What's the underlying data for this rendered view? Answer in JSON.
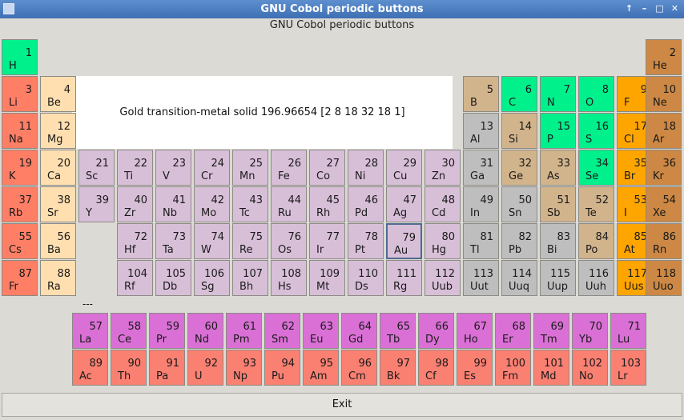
{
  "window": {
    "title": "GNU Cobol periodic buttons"
  },
  "header": {
    "subtitle": "GNU Cobol periodic buttons"
  },
  "info": {
    "text": "Gold transition-metal solid 196.96654 [2 8 18 32 18 1]"
  },
  "separator": {
    "text": "---"
  },
  "footer": {
    "exit_label": "Exit"
  },
  "colors": {
    "nonmetal": "#00f08c",
    "noble": "#cc8844",
    "alkali": "#ff7f66",
    "alkaline": "#ffdfb0",
    "metalloid": "#d2b48c",
    "poor": "#bebebe",
    "halogen": "#ffa500",
    "transition": "#d8bfd8",
    "lanthanide": "#da70d6",
    "actinide": "#fa8072"
  },
  "selected": "79",
  "elements": [
    {
      "num": "1",
      "sym": "H",
      "cat": "nonmetal"
    },
    {
      "num": "2",
      "sym": "He",
      "cat": "noble"
    },
    {
      "num": "3",
      "sym": "Li",
      "cat": "alkali"
    },
    {
      "num": "4",
      "sym": "Be",
      "cat": "alkaline"
    },
    {
      "num": "5",
      "sym": "B",
      "cat": "metalloid"
    },
    {
      "num": "6",
      "sym": "C",
      "cat": "nonmetal"
    },
    {
      "num": "7",
      "sym": "N",
      "cat": "nonmetal"
    },
    {
      "num": "8",
      "sym": "O",
      "cat": "nonmetal"
    },
    {
      "num": "9",
      "sym": "F",
      "cat": "halogen"
    },
    {
      "num": "10",
      "sym": "Ne",
      "cat": "noble"
    },
    {
      "num": "11",
      "sym": "Na",
      "cat": "alkali"
    },
    {
      "num": "12",
      "sym": "Mg",
      "cat": "alkaline"
    },
    {
      "num": "13",
      "sym": "Al",
      "cat": "poor"
    },
    {
      "num": "14",
      "sym": "Si",
      "cat": "metalloid"
    },
    {
      "num": "15",
      "sym": "P",
      "cat": "nonmetal"
    },
    {
      "num": "16",
      "sym": "S",
      "cat": "nonmetal"
    },
    {
      "num": "17",
      "sym": "Cl",
      "cat": "halogen"
    },
    {
      "num": "18",
      "sym": "Ar",
      "cat": "noble"
    },
    {
      "num": "19",
      "sym": "K",
      "cat": "alkali"
    },
    {
      "num": "20",
      "sym": "Ca",
      "cat": "alkaline"
    },
    {
      "num": "21",
      "sym": "Sc",
      "cat": "transition"
    },
    {
      "num": "22",
      "sym": "Ti",
      "cat": "transition"
    },
    {
      "num": "23",
      "sym": "V",
      "cat": "transition"
    },
    {
      "num": "24",
      "sym": "Cr",
      "cat": "transition"
    },
    {
      "num": "25",
      "sym": "Mn",
      "cat": "transition"
    },
    {
      "num": "26",
      "sym": "Fe",
      "cat": "transition"
    },
    {
      "num": "27",
      "sym": "Co",
      "cat": "transition"
    },
    {
      "num": "28",
      "sym": "Ni",
      "cat": "transition"
    },
    {
      "num": "29",
      "sym": "Cu",
      "cat": "transition"
    },
    {
      "num": "30",
      "sym": "Zn",
      "cat": "transition"
    },
    {
      "num": "31",
      "sym": "Ga",
      "cat": "poor"
    },
    {
      "num": "32",
      "sym": "Ge",
      "cat": "metalloid"
    },
    {
      "num": "33",
      "sym": "As",
      "cat": "metalloid"
    },
    {
      "num": "34",
      "sym": "Se",
      "cat": "nonmetal"
    },
    {
      "num": "35",
      "sym": "Br",
      "cat": "halogen"
    },
    {
      "num": "36",
      "sym": "Kr",
      "cat": "noble"
    },
    {
      "num": "37",
      "sym": "Rb",
      "cat": "alkali"
    },
    {
      "num": "38",
      "sym": "Sr",
      "cat": "alkaline"
    },
    {
      "num": "39",
      "sym": "Y",
      "cat": "transition"
    },
    {
      "num": "40",
      "sym": "Zr",
      "cat": "transition"
    },
    {
      "num": "41",
      "sym": "Nb",
      "cat": "transition"
    },
    {
      "num": "42",
      "sym": "Mo",
      "cat": "transition"
    },
    {
      "num": "43",
      "sym": "Tc",
      "cat": "transition"
    },
    {
      "num": "44",
      "sym": "Ru",
      "cat": "transition"
    },
    {
      "num": "45",
      "sym": "Rh",
      "cat": "transition"
    },
    {
      "num": "46",
      "sym": "Pd",
      "cat": "transition"
    },
    {
      "num": "47",
      "sym": "Ag",
      "cat": "transition"
    },
    {
      "num": "48",
      "sym": "Cd",
      "cat": "transition"
    },
    {
      "num": "49",
      "sym": "In",
      "cat": "poor"
    },
    {
      "num": "50",
      "sym": "Sn",
      "cat": "poor"
    },
    {
      "num": "51",
      "sym": "Sb",
      "cat": "metalloid"
    },
    {
      "num": "52",
      "sym": "Te",
      "cat": "metalloid"
    },
    {
      "num": "53",
      "sym": "I",
      "cat": "halogen"
    },
    {
      "num": "54",
      "sym": "Xe",
      "cat": "noble"
    },
    {
      "num": "55",
      "sym": "Cs",
      "cat": "alkali"
    },
    {
      "num": "56",
      "sym": "Ba",
      "cat": "alkaline"
    },
    {
      "num": "72",
      "sym": "Hf",
      "cat": "transition"
    },
    {
      "num": "73",
      "sym": "Ta",
      "cat": "transition"
    },
    {
      "num": "74",
      "sym": "W",
      "cat": "transition"
    },
    {
      "num": "75",
      "sym": "Re",
      "cat": "transition"
    },
    {
      "num": "76",
      "sym": "Os",
      "cat": "transition"
    },
    {
      "num": "77",
      "sym": "Ir",
      "cat": "transition"
    },
    {
      "num": "78",
      "sym": "Pt",
      "cat": "transition"
    },
    {
      "num": "79",
      "sym": "Au",
      "cat": "transition"
    },
    {
      "num": "80",
      "sym": "Hg",
      "cat": "transition"
    },
    {
      "num": "81",
      "sym": "Tl",
      "cat": "poor"
    },
    {
      "num": "82",
      "sym": "Pb",
      "cat": "poor"
    },
    {
      "num": "83",
      "sym": "Bi",
      "cat": "poor"
    },
    {
      "num": "84",
      "sym": "Po",
      "cat": "metalloid"
    },
    {
      "num": "85",
      "sym": "At",
      "cat": "halogen"
    },
    {
      "num": "86",
      "sym": "Rn",
      "cat": "noble"
    },
    {
      "num": "87",
      "sym": "Fr",
      "cat": "alkali"
    },
    {
      "num": "88",
      "sym": "Ra",
      "cat": "alkaline"
    },
    {
      "num": "104",
      "sym": "Rf",
      "cat": "transition"
    },
    {
      "num": "105",
      "sym": "Db",
      "cat": "transition"
    },
    {
      "num": "106",
      "sym": "Sg",
      "cat": "transition"
    },
    {
      "num": "107",
      "sym": "Bh",
      "cat": "transition"
    },
    {
      "num": "108",
      "sym": "Hs",
      "cat": "transition"
    },
    {
      "num": "109",
      "sym": "Mt",
      "cat": "transition"
    },
    {
      "num": "110",
      "sym": "Ds",
      "cat": "transition"
    },
    {
      "num": "111",
      "sym": "Rg",
      "cat": "transition"
    },
    {
      "num": "112",
      "sym": "Uub",
      "cat": "transition"
    },
    {
      "num": "113",
      "sym": "Uut",
      "cat": "poor"
    },
    {
      "num": "114",
      "sym": "Uuq",
      "cat": "poor"
    },
    {
      "num": "115",
      "sym": "Uup",
      "cat": "poor"
    },
    {
      "num": "116",
      "sym": "Uuh",
      "cat": "poor"
    },
    {
      "num": "117",
      "sym": "Uus",
      "cat": "halogen"
    },
    {
      "num": "118",
      "sym": "Uuo",
      "cat": "noble"
    },
    {
      "num": "57",
      "sym": "La",
      "cat": "lanthanide"
    },
    {
      "num": "58",
      "sym": "Ce",
      "cat": "lanthanide"
    },
    {
      "num": "59",
      "sym": "Pr",
      "cat": "lanthanide"
    },
    {
      "num": "60",
      "sym": "Nd",
      "cat": "lanthanide"
    },
    {
      "num": "61",
      "sym": "Pm",
      "cat": "lanthanide"
    },
    {
      "num": "62",
      "sym": "Sm",
      "cat": "lanthanide"
    },
    {
      "num": "63",
      "sym": "Eu",
      "cat": "lanthanide"
    },
    {
      "num": "64",
      "sym": "Gd",
      "cat": "lanthanide"
    },
    {
      "num": "65",
      "sym": "Tb",
      "cat": "lanthanide"
    },
    {
      "num": "66",
      "sym": "Dy",
      "cat": "lanthanide"
    },
    {
      "num": "67",
      "sym": "Ho",
      "cat": "lanthanide"
    },
    {
      "num": "68",
      "sym": "Er",
      "cat": "lanthanide"
    },
    {
      "num": "69",
      "sym": "Tm",
      "cat": "lanthanide"
    },
    {
      "num": "70",
      "sym": "Yb",
      "cat": "lanthanide"
    },
    {
      "num": "71",
      "sym": "Lu",
      "cat": "lanthanide"
    },
    {
      "num": "89",
      "sym": "Ac",
      "cat": "actinide"
    },
    {
      "num": "90",
      "sym": "Th",
      "cat": "actinide"
    },
    {
      "num": "91",
      "sym": "Pa",
      "cat": "actinide"
    },
    {
      "num": "92",
      "sym": "U",
      "cat": "actinide"
    },
    {
      "num": "93",
      "sym": "Np",
      "cat": "actinide"
    },
    {
      "num": "94",
      "sym": "Pu",
      "cat": "actinide"
    },
    {
      "num": "95",
      "sym": "Am",
      "cat": "actinide"
    },
    {
      "num": "96",
      "sym": "Cm",
      "cat": "actinide"
    },
    {
      "num": "97",
      "sym": "Bk",
      "cat": "actinide"
    },
    {
      "num": "98",
      "sym": "Cf",
      "cat": "actinide"
    },
    {
      "num": "99",
      "sym": "Es",
      "cat": "actinide"
    },
    {
      "num": "100",
      "sym": "Fm",
      "cat": "actinide"
    },
    {
      "num": "101",
      "sym": "Md",
      "cat": "actinide"
    },
    {
      "num": "102",
      "sym": "No",
      "cat": "actinide"
    },
    {
      "num": "103",
      "sym": "Lr",
      "cat": "actinide"
    }
  ]
}
